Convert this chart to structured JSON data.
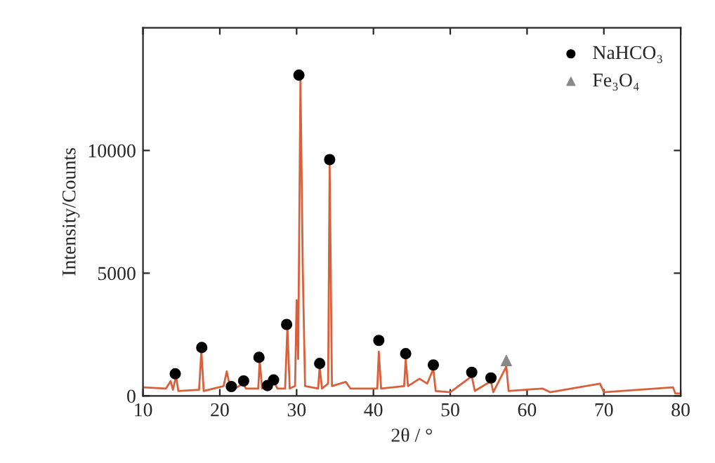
{
  "chart_data": {
    "type": "line",
    "xlabel": "2θ / °",
    "ylabel": "Intensity/Counts",
    "xlim": [
      10,
      80
    ],
    "xticks": [
      10,
      20,
      30,
      40,
      50,
      60,
      70,
      80
    ],
    "ylim": [
      0,
      15000
    ],
    "yticks": [
      0,
      5000,
      10000
    ],
    "grid": false,
    "legend": "top right",
    "series": [
      {
        "color": "#d9603b",
        "marker": "none",
        "x": [
          10,
          13,
          13.6,
          13.9,
          14.3,
          14.6,
          17.3,
          17.6,
          17.9,
          20.5,
          20.9,
          21.3,
          22,
          23,
          23.4,
          25,
          25.2,
          25.5,
          26.1,
          26.3,
          27,
          27.5,
          28.5,
          28.8,
          29.1,
          29.8,
          30,
          30.2,
          30.5,
          30.8,
          31.1,
          32.8,
          33,
          33.3,
          34.1,
          34.3,
          34.6,
          36.4,
          37,
          40.5,
          40.7,
          41,
          44,
          44.2,
          44.5,
          46,
          47,
          47.8,
          48.1,
          50,
          52.8,
          53.2,
          55.3,
          55.6,
          57.3,
          57.6,
          62,
          63,
          69.5,
          70,
          79,
          79.3,
          80
        ],
        "values": [
          350,
          300,
          600,
          250,
          800,
          200,
          250,
          1850,
          200,
          400,
          1000,
          400,
          300,
          500,
          300,
          300,
          1450,
          300,
          400,
          300,
          600,
          300,
          300,
          2800,
          300,
          400,
          3900,
          1500,
          12900,
          5200,
          400,
          300,
          1200,
          300,
          500,
          9400,
          400,
          570,
          300,
          300,
          1800,
          300,
          400,
          1500,
          400,
          700,
          500,
          1100,
          200,
          150,
          800,
          200,
          600,
          150,
          1200,
          200,
          300,
          150,
          500,
          150,
          350,
          100,
          100
        ]
      },
      {
        "type": "scatter",
        "name": "NaHCO₃",
        "color": "#000000",
        "marker": "circle",
        "x": [
          14.2,
          17.65,
          21.5,
          23.1,
          25.1,
          26.2,
          27.0,
          28.7,
          30.3,
          33.0,
          34.3,
          40.7,
          44.2,
          47.8,
          52.8,
          55.3
        ],
        "values": [
          900,
          1970,
          380,
          610,
          1570,
          420,
          650,
          2910,
          13070,
          1320,
          9630,
          2260,
          1720,
          1260,
          960,
          730
        ]
      },
      {
        "type": "scatter",
        "name": "Fe₃O₄",
        "color": "#888888",
        "marker": "triangle",
        "x": [
          57.3
        ],
        "values": [
          1440
        ]
      }
    ]
  }
}
